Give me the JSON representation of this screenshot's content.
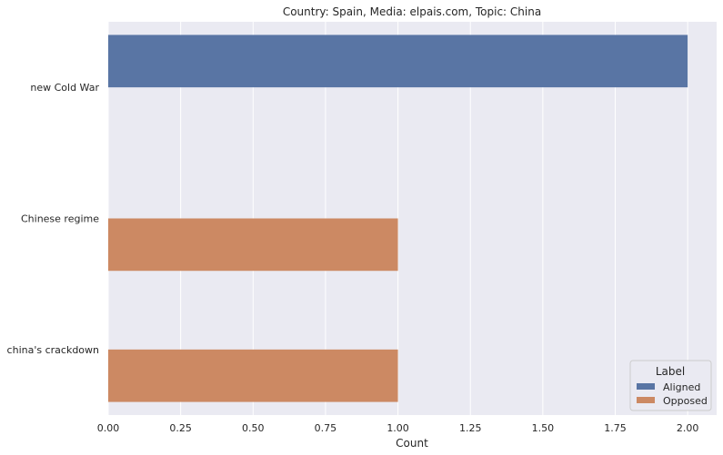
{
  "chart_data": {
    "type": "bar",
    "orientation": "horizontal",
    "title": "Country: Spain, Media: elpais.com, Topic: China",
    "xlabel": "Count",
    "ylabel": "",
    "categories": [
      "new Cold War",
      "Chinese regime",
      "china's crackdown"
    ],
    "series": [
      {
        "name": "Aligned",
        "color": "#5975a4",
        "values": [
          2,
          0,
          0
        ]
      },
      {
        "name": "Opposed",
        "color": "#cc8963",
        "values": [
          0,
          1,
          1
        ]
      }
    ],
    "xlim": [
      0,
      2.1
    ],
    "xticks": [
      "0.00",
      "0.25",
      "0.50",
      "0.75",
      "1.00",
      "1.25",
      "1.50",
      "1.75",
      "2.00"
    ],
    "grid": true,
    "legend": {
      "title": "Label",
      "placement": "bottom-right"
    }
  }
}
